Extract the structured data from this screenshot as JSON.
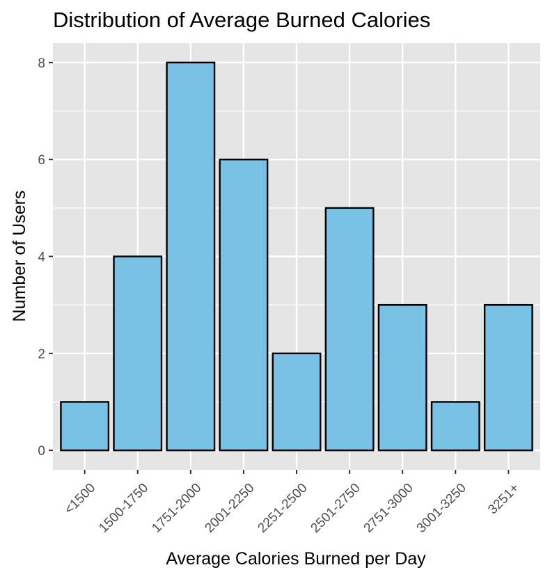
{
  "colors": {
    "panel_background": "#e5e5e5",
    "grid": "#ffffff",
    "bar_fill": "#79c2e5",
    "bar_outline": "#000000",
    "tick_text": "#4d4d4d",
    "tick_mark": "#333333"
  },
  "chart_data": {
    "type": "bar",
    "title": "Distribution of Average Burned Calories",
    "xlabel": "Average Calories Burned per Day",
    "ylabel": "Number of Users",
    "categories": [
      "<1500",
      "1500-1750",
      "1751-2000",
      "2001-2250",
      "2251-2500",
      "2501-2750",
      "2751-3000",
      "3001-3250",
      "3251+"
    ],
    "values": [
      1,
      4,
      8,
      6,
      2,
      5,
      3,
      1,
      3
    ],
    "y_ticks": [
      0,
      2,
      4,
      6,
      8
    ],
    "ylim": [
      -0.4,
      8.4
    ],
    "grid": true,
    "legend": "none"
  }
}
